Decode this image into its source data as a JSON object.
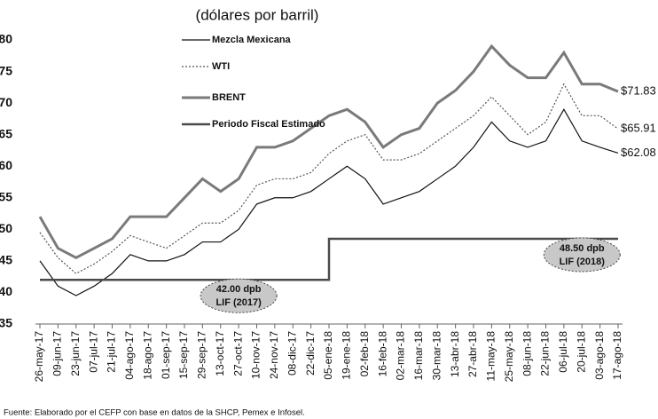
{
  "chart_data": {
    "type": "line",
    "title": "(dólares por barril)",
    "source": "Fuente: Elaborado por el CEFP con base en datos de la SHCP, Pemex e Infosel.",
    "categories": [
      "26-may-17",
      "09-jun-17",
      "23-jun-17",
      "07-jul-17",
      "21-jul-17",
      "04-ago-17",
      "18-ago-17",
      "01-sep-17",
      "15-sep-17",
      "29-sep-17",
      "13-oct-17",
      "27-oct-17",
      "10-nov-17",
      "24-nov-17",
      "08-dic-17",
      "22-dic-17",
      "05-ene-18",
      "19-ene-18",
      "02-feb-18",
      "16-feb-18",
      "02-mar-18",
      "16-mar-18",
      "30-mar-18",
      "13-abr-18",
      "27-abr-18",
      "11-may-18",
      "25-may-18",
      "08-jun-18",
      "22-jun-18",
      "06-jul-18",
      "20-jul-18",
      "03-ago-18",
      "17-ago-18"
    ],
    "ylim": [
      35,
      80
    ],
    "yticks": [
      35,
      40,
      45,
      50,
      55,
      60,
      65,
      70,
      75,
      80
    ],
    "grid": false,
    "legend": "top-left",
    "series": [
      {
        "name": "Mezcla Mexicana",
        "color": "#111111",
        "dash": "solid",
        "width": 1.2,
        "values": [
          45,
          41,
          39.5,
          41,
          43,
          46,
          45,
          45,
          46,
          48,
          48,
          50,
          54,
          55,
          55,
          56,
          58,
          60,
          58,
          54,
          55,
          56,
          58,
          60,
          63,
          67,
          64,
          63,
          64,
          69,
          64,
          63,
          62.08
        ],
        "value_labels": [
          null,
          null,
          null,
          null,
          null,
          null,
          null,
          null,
          null,
          null,
          null,
          null,
          null,
          null,
          null,
          null,
          null,
          null,
          null,
          null,
          null,
          null,
          null,
          null,
          null,
          null,
          null,
          null,
          null,
          null,
          null,
          null,
          "$62.08"
        ]
      },
      {
        "name": "WTI",
        "color": "#555555",
        "dash": "dotted",
        "width": 1.2,
        "values": [
          49.5,
          45.5,
          43,
          44.5,
          46.5,
          49,
          48,
          47,
          49,
          51,
          51,
          53,
          57,
          58,
          58,
          59,
          62,
          64,
          65,
          61,
          61,
          62,
          64,
          66,
          68,
          71,
          68,
          65,
          67,
          73,
          68,
          68,
          65.91
        ],
        "value_labels": [
          null,
          null,
          null,
          null,
          null,
          null,
          null,
          null,
          null,
          null,
          null,
          null,
          null,
          null,
          null,
          null,
          null,
          null,
          null,
          null,
          null,
          null,
          null,
          null,
          null,
          null,
          null,
          null,
          null,
          null,
          null,
          null,
          "$65.91"
        ]
      },
      {
        "name": "BRENT",
        "color": "#7a7a7a",
        "dash": "solid",
        "width": 3,
        "values": [
          52,
          47,
          45.5,
          47,
          48.5,
          52,
          52,
          52,
          55,
          58,
          56,
          58,
          63,
          63,
          64,
          66,
          68,
          69,
          67,
          63,
          65,
          66,
          70,
          72,
          75,
          79,
          76,
          74,
          74,
          78,
          73,
          73,
          71.83
        ],
        "value_labels": [
          null,
          null,
          null,
          null,
          null,
          null,
          null,
          null,
          null,
          null,
          null,
          null,
          null,
          null,
          null,
          null,
          null,
          null,
          null,
          null,
          null,
          null,
          null,
          null,
          null,
          null,
          null,
          null,
          null,
          null,
          null,
          null,
          "$71.83"
        ]
      },
      {
        "name": "Periodo Fiscal Estimado",
        "color": "#4a4a4a",
        "dash": "solid",
        "width": 2.5,
        "style": "step",
        "values": [
          42,
          42,
          42,
          42,
          42,
          42,
          42,
          42,
          42,
          42,
          42,
          42,
          42,
          42,
          42,
          42,
          48.5,
          48.5,
          48.5,
          48.5,
          48.5,
          48.5,
          48.5,
          48.5,
          48.5,
          48.5,
          48.5,
          48.5,
          48.5,
          48.5,
          48.5,
          48.5,
          48.5
        ]
      }
    ],
    "annotations": [
      {
        "lines": [
          "42.00 dpb",
          "LIF (2017)"
        ],
        "series": 3,
        "index": 11
      },
      {
        "lines": [
          "48.50 dpb",
          "LIF (2018)"
        ],
        "series": 3,
        "index": 30
      }
    ]
  }
}
